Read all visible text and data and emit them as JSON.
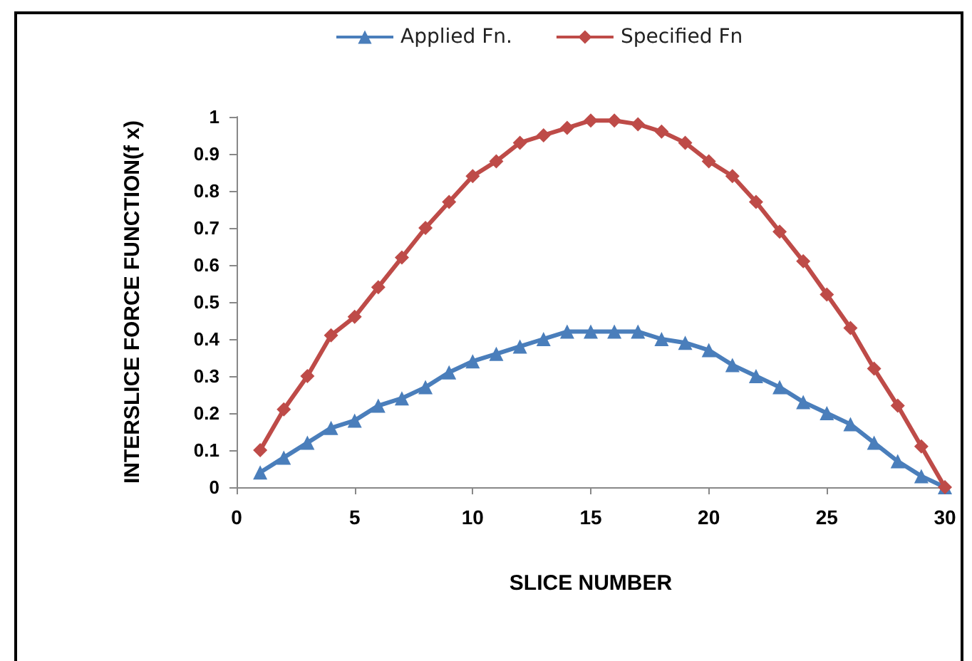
{
  "chart_data": {
    "type": "line",
    "xlabel": "SLICE NUMBER",
    "ylabel": "INTERSLICE FORCE FUNCTION(f x)",
    "x": [
      1,
      2,
      3,
      4,
      5,
      6,
      7,
      8,
      9,
      10,
      11,
      12,
      13,
      14,
      15,
      16,
      17,
      18,
      19,
      20,
      21,
      22,
      23,
      24,
      25,
      26,
      27,
      28,
      29,
      30
    ],
    "series": [
      {
        "name": "Applied Fn.",
        "color": "#4a7ebb",
        "marker": "triangle",
        "values": [
          0.04,
          0.08,
          0.12,
          0.16,
          0.18,
          0.22,
          0.24,
          0.27,
          0.31,
          0.34,
          0.36,
          0.38,
          0.4,
          0.42,
          0.42,
          0.42,
          0.42,
          0.4,
          0.39,
          0.37,
          0.33,
          0.3,
          0.27,
          0.23,
          0.2,
          0.17,
          0.12,
          0.07,
          0.03,
          0
        ]
      },
      {
        "name": "Specified Fn",
        "color": "#be4b48",
        "marker": "diamond",
        "values": [
          0.1,
          0.21,
          0.3,
          0.41,
          0.46,
          0.54,
          0.62,
          0.7,
          0.77,
          0.84,
          0.88,
          0.93,
          0.95,
          0.97,
          0.99,
          0.99,
          0.98,
          0.96,
          0.93,
          0.88,
          0.84,
          0.77,
          0.69,
          0.61,
          0.52,
          0.43,
          0.32,
          0.22,
          0.11,
          0
        ]
      }
    ],
    "xlim": [
      0,
      30
    ],
    "xticks": [
      0,
      5,
      10,
      15,
      20,
      25,
      30
    ],
    "ylim": [
      0,
      1
    ],
    "yticks": [
      0,
      0.1,
      0.2,
      0.3,
      0.4,
      0.5,
      0.6,
      0.7,
      0.8,
      0.9,
      1
    ],
    "grid": false,
    "legend": "top",
    "line_style": "solid"
  }
}
